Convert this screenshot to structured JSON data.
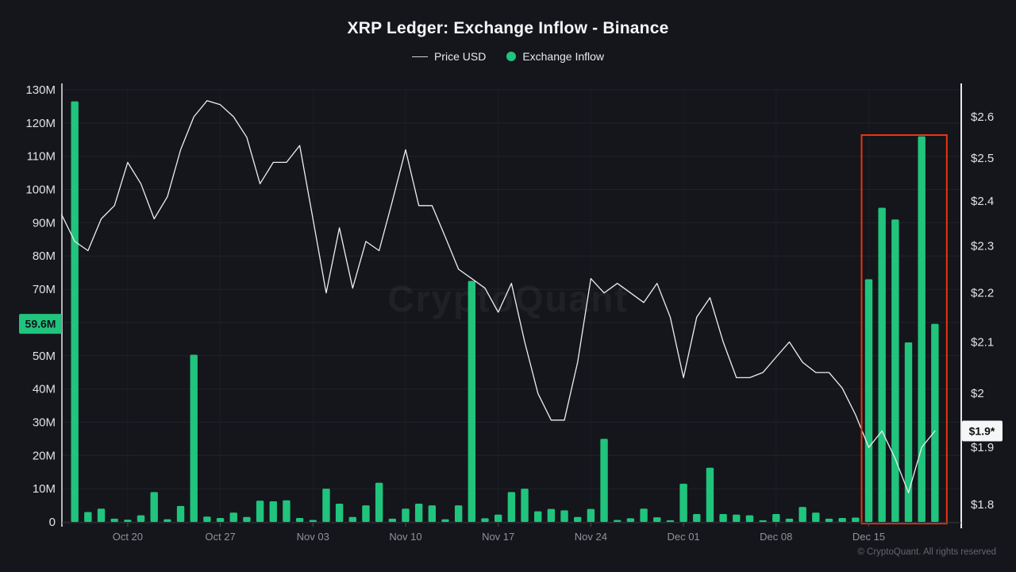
{
  "window": {
    "title": "XRP Ledger: Exchange Inflow - Binance"
  },
  "chart_data": {
    "type": "mixed",
    "title": "XRP Ledger: Exchange Inflow - Binance",
    "subtitle": "",
    "legend": [
      {
        "label": "Price USD",
        "swatch": "line",
        "color": "#cdd0d6"
      },
      {
        "label": "Exchange Inflow",
        "swatch": "dot",
        "color": "#20c47d"
      }
    ],
    "watermark": "CryptoQuant",
    "grid": "horizontal",
    "x_axis": {
      "tick_labels": [
        "Oct 20",
        "Oct 27",
        "Nov 03",
        "Nov 10",
        "Nov 17",
        "Nov 24",
        "Dec 01",
        "Dec 08",
        "Dec 15"
      ]
    },
    "left_axis": {
      "tick_labels": [
        "0",
        "10M",
        "20M",
        "30M",
        "40M",
        "50M",
        "60M",
        "70M",
        "80M",
        "90M",
        "100M",
        "110M",
        "120M",
        "130M"
      ],
      "tick_values": [
        0,
        10,
        20,
        30,
        40,
        50,
        60,
        70,
        80,
        90,
        100,
        110,
        120,
        130
      ],
      "range": [
        0,
        130
      ],
      "unit": "million XRP",
      "current_value_badge": "59.6M",
      "badge_color": "#20c47d"
    },
    "right_axis": {
      "tick_labels": [
        "$2.6",
        "$2.5",
        "$2.4",
        "$2.3",
        "$2.2",
        "$2.1",
        "$2",
        "$1.9",
        "$1.8"
      ],
      "tick_values": [
        2.6,
        2.5,
        2.4,
        2.3,
        2.2,
        2.1,
        2.0,
        1.9,
        1.8
      ],
      "range": [
        1.8,
        2.6
      ],
      "scale": "log",
      "unit": "USD",
      "current_value_badge": "$1.9*",
      "badge_color": "#f5f6f8"
    },
    "series": {
      "exchange_inflow": {
        "name": "Exchange Inflow",
        "type": "bar",
        "color": "#20c47d",
        "unit": "million XRP",
        "dates": [
          "Oct 16",
          "Oct 17",
          "Oct 18",
          "Oct 19",
          "Oct 20",
          "Oct 21",
          "Oct 22",
          "Oct 23",
          "Oct 24",
          "Oct 25",
          "Oct 26",
          "Oct 27",
          "Oct 28",
          "Oct 29",
          "Oct 30",
          "Oct 31",
          "Nov 01",
          "Nov 02",
          "Nov 03",
          "Nov 04",
          "Nov 05",
          "Nov 06",
          "Nov 07",
          "Nov 08",
          "Nov 09",
          "Nov 10",
          "Nov 11",
          "Nov 12",
          "Nov 13",
          "Nov 14",
          "Nov 15",
          "Nov 16",
          "Nov 17",
          "Nov 18",
          "Nov 19",
          "Nov 20",
          "Nov 21",
          "Nov 22",
          "Nov 23",
          "Nov 24",
          "Nov 25",
          "Nov 26",
          "Nov 27",
          "Nov 28",
          "Nov 29",
          "Nov 30",
          "Dec 01",
          "Dec 02",
          "Dec 03",
          "Dec 04",
          "Dec 05",
          "Dec 06",
          "Dec 07",
          "Dec 08",
          "Dec 09",
          "Dec 10",
          "Dec 11",
          "Dec 12",
          "Dec 13",
          "Dec 14",
          "Dec 15",
          "Dec 16",
          "Dec 17",
          "Dec 18",
          "Dec 19",
          "Dec 20"
        ],
        "values": [
          126.5,
          3,
          4,
          1,
          0.7,
          2,
          9,
          0.8,
          4.8,
          50.3,
          1.6,
          1.2,
          2.8,
          1.5,
          6.4,
          6.2,
          6.5,
          1.2,
          0.6,
          10,
          5.5,
          1.5,
          5,
          11.8,
          1,
          4,
          5.5,
          5,
          0.8,
          5,
          72.5,
          1.1,
          2.2,
          9,
          10,
          3.2,
          3.9,
          3.5,
          1.5,
          3.9,
          25,
          0.6,
          1.1,
          4,
          1.4,
          0.5,
          11.5,
          2.4,
          16.3,
          2.4,
          2.2,
          2,
          0.5,
          2.4,
          1,
          4.5,
          2.8,
          1,
          1.2,
          1.3,
          73,
          94.5,
          91,
          54,
          116,
          59.6
        ]
      },
      "price_usd": {
        "name": "Price USD",
        "type": "line",
        "color": "#edeef1",
        "unit": "USD",
        "dates": [
          "Oct 15",
          "Oct 16",
          "Oct 17",
          "Oct 18",
          "Oct 19",
          "Oct 20",
          "Oct 21",
          "Oct 22",
          "Oct 23",
          "Oct 24",
          "Oct 25",
          "Oct 26",
          "Oct 27",
          "Oct 28",
          "Oct 29",
          "Oct 30",
          "Oct 31",
          "Nov 01",
          "Nov 02",
          "Nov 03",
          "Nov 04",
          "Nov 05",
          "Nov 06",
          "Nov 07",
          "Nov 08",
          "Nov 09",
          "Nov 10",
          "Nov 11",
          "Nov 12",
          "Nov 13",
          "Nov 14",
          "Nov 15",
          "Nov 16",
          "Nov 17",
          "Nov 18",
          "Nov 19",
          "Nov 20",
          "Nov 21",
          "Nov 22",
          "Nov 23",
          "Nov 24",
          "Nov 25",
          "Nov 26",
          "Nov 27",
          "Nov 28",
          "Nov 29",
          "Nov 30",
          "Dec 01",
          "Dec 02",
          "Dec 03",
          "Dec 04",
          "Dec 05",
          "Dec 06",
          "Dec 07",
          "Dec 08",
          "Dec 09",
          "Dec 10",
          "Dec 11",
          "Dec 12",
          "Dec 13",
          "Dec 14",
          "Dec 15",
          "Dec 16",
          "Dec 17",
          "Dec 18",
          "Dec 19",
          "Dec 20"
        ],
        "values": [
          2.37,
          2.31,
          2.29,
          2.36,
          2.39,
          2.49,
          2.44,
          2.36,
          2.41,
          2.52,
          2.6,
          2.64,
          2.63,
          2.6,
          2.55,
          2.44,
          2.49,
          2.49,
          2.53,
          2.36,
          2.2,
          2.34,
          2.21,
          2.31,
          2.29,
          2.4,
          2.52,
          2.39,
          2.39,
          2.32,
          2.25,
          2.23,
          2.21,
          2.16,
          2.22,
          2.1,
          2.0,
          1.95,
          1.95,
          2.06,
          2.23,
          2.2,
          2.22,
          2.2,
          2.18,
          2.22,
          2.15,
          2.03,
          2.15,
          2.19,
          2.1,
          2.03,
          2.03,
          2.04,
          2.07,
          2.1,
          2.06,
          2.04,
          2.04,
          2.01,
          1.96,
          1.9,
          1.93,
          1.88,
          1.82,
          1.9,
          1.93
        ]
      }
    },
    "highlight_box": {
      "color": "#ea3412",
      "date_range": [
        "Dec 15",
        "Dec 20"
      ]
    }
  },
  "footer": {
    "copyright": "© CryptoQuant. All rights reserved"
  }
}
